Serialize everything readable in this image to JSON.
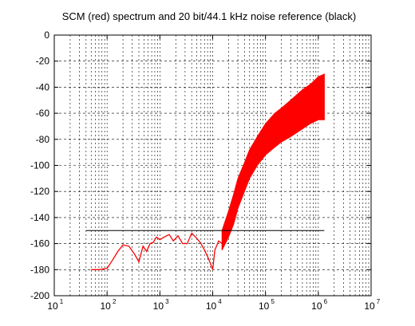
{
  "chart_data": {
    "type": "line",
    "title": "SCM (red) spectrum and 20 bit/44.1 kHz noise reference (black)",
    "xlabel": "",
    "ylabel": "",
    "x_scale": "log",
    "xlim": [
      10,
      10000000
    ],
    "ylim": [
      -200,
      0
    ],
    "grid": true,
    "x_ticks": [
      {
        "value": 10,
        "base": "10",
        "exp": "1"
      },
      {
        "value": 100,
        "base": "10",
        "exp": "2"
      },
      {
        "value": 1000,
        "base": "10",
        "exp": "3"
      },
      {
        "value": 10000,
        "base": "10",
        "exp": "4"
      },
      {
        "value": 100000,
        "base": "10",
        "exp": "5"
      },
      {
        "value": 1000000,
        "base": "10",
        "exp": "6"
      },
      {
        "value": 10000000,
        "base": "10",
        "exp": "7"
      }
    ],
    "y_ticks": [
      {
        "value": 0,
        "label": "0"
      },
      {
        "value": -20,
        "label": "-20"
      },
      {
        "value": -40,
        "label": "-40"
      },
      {
        "value": -60,
        "label": "-60"
      },
      {
        "value": -80,
        "label": "-80"
      },
      {
        "value": -100,
        "label": "-100"
      },
      {
        "value": -120,
        "label": "-120"
      },
      {
        "value": -140,
        "label": "-140"
      },
      {
        "value": -160,
        "label": "-160"
      },
      {
        "value": -180,
        "label": "-180"
      },
      {
        "value": -200,
        "label": "-200"
      }
    ],
    "series": [
      {
        "color": "#ff0000",
        "x": [
          50,
          70,
          100,
          130,
          160,
          200,
          260,
          330,
          400,
          480,
          560,
          650,
          750,
          860,
          1000,
          1200,
          1500,
          1800,
          2200,
          2700,
          3300,
          4000,
          5000,
          6000,
          7000,
          8000,
          9000,
          10000,
          11000,
          13000,
          15000,
          17000,
          20000,
          25000,
          30000,
          40000,
          50000,
          70000,
          100000,
          150000,
          200000,
          300000,
          500000,
          700000,
          1000000,
          1300000
        ],
        "y": [
          -180,
          -180,
          -179,
          -172,
          -166,
          -161,
          -162,
          -168,
          -174,
          -162,
          -166,
          -160,
          -159,
          -155,
          -157,
          -155,
          -153,
          -158,
          -154,
          -160,
          -160,
          -152,
          -156,
          -160,
          -165,
          -170,
          -175,
          -180,
          -165,
          -158,
          -160,
          -150,
          -143,
          -128,
          -118,
          -105,
          -95,
          -84,
          -76,
          -70,
          -66,
          -60,
          -52,
          -48,
          -47,
          -47
        ],
        "band": {
          "x": [
            15000,
            20000,
            25000,
            30000,
            40000,
            50000,
            70000,
            100000,
            150000,
            200000,
            300000,
            500000,
            700000,
            1000000,
            1300000
          ],
          "upper": [
            -150,
            -135,
            -122,
            -110,
            -98,
            -88,
            -78,
            -68,
            -60,
            -56,
            -50,
            -42,
            -38,
            -32,
            -30
          ],
          "lower": [
            -165,
            -155,
            -145,
            -133,
            -120,
            -110,
            -100,
            -92,
            -86,
            -82,
            -78,
            -72,
            -68,
            -65,
            -65
          ]
        }
      },
      {
        "color": "#000000",
        "x": [
          40,
          1300000
        ],
        "y": [
          -150,
          -150
        ]
      }
    ]
  }
}
